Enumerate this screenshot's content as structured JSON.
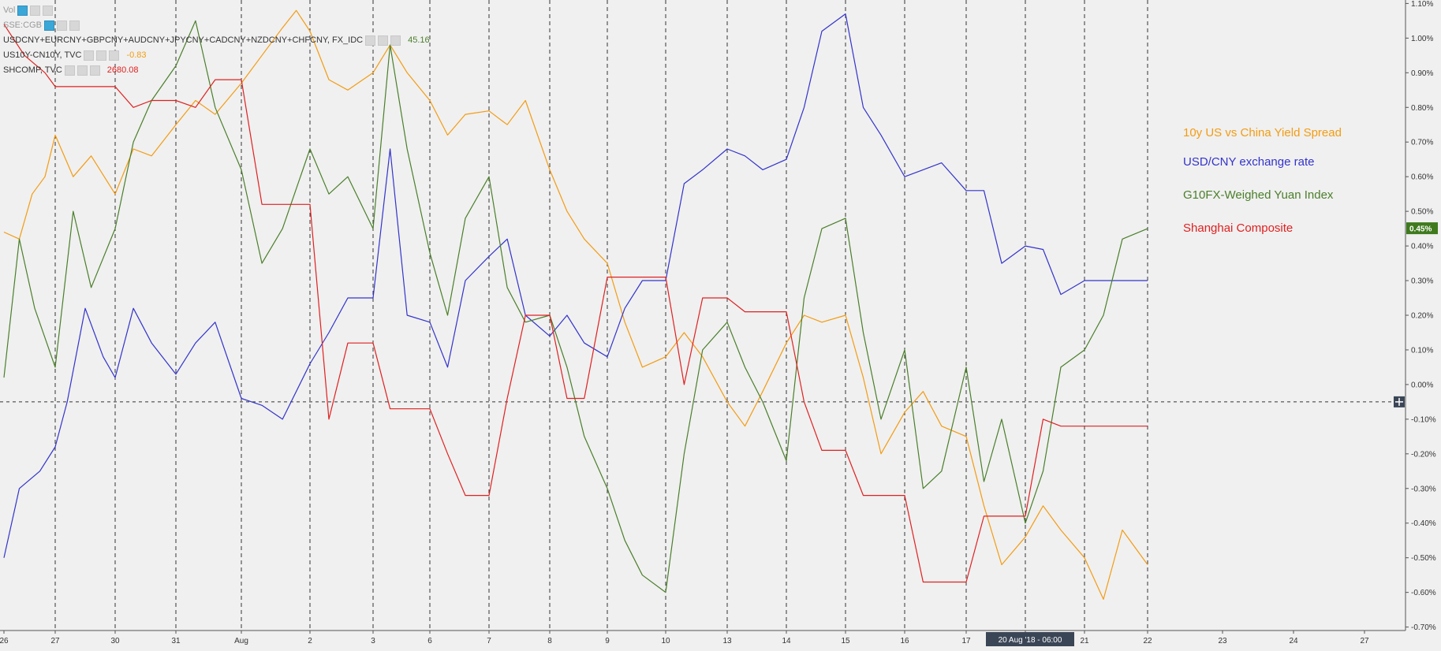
{
  "toolbar": {
    "vol_label": "Vol",
    "sse_label": "SSE:CGB",
    "series_rows": [
      {
        "label": "USDCNY+EURCNY+GBPCNY+AUDCNY+JPYCNY+CADCNY+NZDCNY+CHFCNY, FX_IDC",
        "value": "45.16",
        "color": "#4a7f2a"
      },
      {
        "label": "US10Y-CN10Y, TVC",
        "value": "-0.83",
        "color": "#f39c12"
      },
      {
        "label": "SHCOMP, TVC",
        "value": "2680.08",
        "color": "#e02020"
      }
    ]
  },
  "crosshair_date_label": "20 Aug '18 - 06:00",
  "last_value_badge": "0.45%",
  "chart_data": {
    "type": "line",
    "x_ticks": [
      "26",
      "27",
      "30",
      "31",
      "Aug",
      "2",
      "3",
      "6",
      "7",
      "8",
      "9",
      "10",
      "13",
      "14",
      "15",
      "16",
      "17",
      "20",
      "21",
      "22",
      "23",
      "24",
      "27"
    ],
    "y_ticks": [
      "1.10%",
      "1.00%",
      "0.90%",
      "0.80%",
      "0.70%",
      "0.60%",
      "0.50%",
      "0.40%",
      "0.30%",
      "0.20%",
      "0.10%",
      "0.00%",
      "-0.10%",
      "-0.20%",
      "-0.30%",
      "-0.40%",
      "-0.50%",
      "-0.60%",
      "-0.70%"
    ],
    "ylim": [
      -0.71,
      1.11
    ],
    "grid": "vertical-dashed-at-sessions",
    "legend": [
      {
        "name": "10y US vs China Yield Spread",
        "color": "#f39c12"
      },
      {
        "name": "USD/CNY exchange rate",
        "color": "#3333cc"
      },
      {
        "name": "G10FX-Weighed Yuan Index",
        "color": "#4a7f2a"
      },
      {
        "name": "Shanghai Composite",
        "color": "#e02020"
      }
    ],
    "series": [
      {
        "name": "10y US vs China Yield Spread",
        "color": "#f39c12",
        "points": [
          [
            0,
            0.44
          ],
          [
            0.3,
            0.42
          ],
          [
            0.55,
            0.55
          ],
          [
            0.8,
            0.6
          ],
          [
            1,
            0.72
          ],
          [
            1.3,
            0.6
          ],
          [
            1.6,
            0.66
          ],
          [
            2,
            0.55
          ],
          [
            2.3,
            0.68
          ],
          [
            2.6,
            0.66
          ],
          [
            3,
            0.75
          ],
          [
            3.3,
            0.82
          ],
          [
            3.6,
            0.78
          ],
          [
            4,
            0.87
          ],
          [
            4.3,
            0.95
          ],
          [
            4.6,
            1.03
          ],
          [
            4.8,
            1.08
          ],
          [
            5,
            1.02
          ],
          [
            5.3,
            0.88
          ],
          [
            5.6,
            0.85
          ],
          [
            6,
            0.9
          ],
          [
            6.3,
            0.98
          ],
          [
            6.6,
            0.9
          ],
          [
            7,
            0.82
          ],
          [
            7.3,
            0.72
          ],
          [
            7.6,
            0.78
          ],
          [
            8,
            0.79
          ],
          [
            8.3,
            0.75
          ],
          [
            8.6,
            0.82
          ],
          [
            9,
            0.62
          ],
          [
            9.3,
            0.5
          ],
          [
            9.6,
            0.42
          ],
          [
            10,
            0.35
          ],
          [
            10.3,
            0.18
          ],
          [
            10.6,
            0.05
          ],
          [
            11,
            0.08
          ],
          [
            11.3,
            0.15
          ],
          [
            11.6,
            0.08
          ],
          [
            12,
            -0.05
          ],
          [
            12.3,
            -0.12
          ],
          [
            12.6,
            -0.02
          ],
          [
            13,
            0.12
          ],
          [
            13.3,
            0.2
          ],
          [
            13.6,
            0.18
          ],
          [
            14,
            0.2
          ],
          [
            14.3,
            0.02
          ],
          [
            14.6,
            -0.2
          ],
          [
            15,
            -0.08
          ],
          [
            15.3,
            -0.02
          ],
          [
            15.6,
            -0.12
          ],
          [
            16,
            -0.15
          ],
          [
            16.3,
            -0.35
          ],
          [
            16.6,
            -0.52
          ],
          [
            17,
            -0.44
          ],
          [
            17.3,
            -0.35
          ],
          [
            17.6,
            -0.42
          ],
          [
            18,
            -0.5
          ],
          [
            18.3,
            -0.62
          ],
          [
            18.6,
            -0.42
          ],
          [
            19,
            -0.52
          ]
        ]
      },
      {
        "name": "USD/CNY exchange rate",
        "color": "#3333cc",
        "points": [
          [
            0,
            -0.5
          ],
          [
            0.3,
            -0.3
          ],
          [
            0.7,
            -0.25
          ],
          [
            1,
            -0.18
          ],
          [
            1.2,
            -0.05
          ],
          [
            1.5,
            0.22
          ],
          [
            1.8,
            0.08
          ],
          [
            2,
            0.02
          ],
          [
            2.3,
            0.22
          ],
          [
            2.6,
            0.12
          ],
          [
            3,
            0.03
          ],
          [
            3.3,
            0.12
          ],
          [
            3.6,
            0.18
          ],
          [
            4,
            -0.04
          ],
          [
            4.3,
            -0.06
          ],
          [
            4.6,
            -0.1
          ],
          [
            5,
            0.06
          ],
          [
            5.3,
            0.15
          ],
          [
            5.6,
            0.25
          ],
          [
            6,
            0.25
          ],
          [
            6.3,
            0.68
          ],
          [
            6.6,
            0.2
          ],
          [
            7,
            0.18
          ],
          [
            7.3,
            0.05
          ],
          [
            7.6,
            0.3
          ],
          [
            8,
            0.37
          ],
          [
            8.3,
            0.42
          ],
          [
            8.6,
            0.2
          ],
          [
            9,
            0.14
          ],
          [
            9.3,
            0.2
          ],
          [
            9.6,
            0.12
          ],
          [
            10,
            0.08
          ],
          [
            10.3,
            0.22
          ],
          [
            10.6,
            0.3
          ],
          [
            11,
            0.3
          ],
          [
            11.3,
            0.58
          ],
          [
            11.6,
            0.62
          ],
          [
            12,
            0.68
          ],
          [
            12.3,
            0.66
          ],
          [
            12.6,
            0.62
          ],
          [
            13,
            0.65
          ],
          [
            13.3,
            0.8
          ],
          [
            13.6,
            1.02
          ],
          [
            14,
            1.07
          ],
          [
            14.3,
            0.8
          ],
          [
            14.6,
            0.72
          ],
          [
            15,
            0.6
          ],
          [
            15.3,
            0.62
          ],
          [
            15.6,
            0.64
          ],
          [
            16,
            0.56
          ],
          [
            16.3,
            0.56
          ],
          [
            16.6,
            0.35
          ],
          [
            17,
            0.4
          ],
          [
            17.3,
            0.39
          ],
          [
            17.6,
            0.26
          ],
          [
            18,
            0.3
          ],
          [
            18.3,
            0.3
          ],
          [
            19,
            0.3
          ]
        ]
      },
      {
        "name": "G10FX-Weighed Yuan Index",
        "color": "#4a7f2a",
        "points": [
          [
            0,
            0.02
          ],
          [
            0.3,
            0.42
          ],
          [
            0.6,
            0.22
          ],
          [
            1,
            0.05
          ],
          [
            1.3,
            0.5
          ],
          [
            1.6,
            0.28
          ],
          [
            2,
            0.45
          ],
          [
            2.3,
            0.7
          ],
          [
            2.6,
            0.82
          ],
          [
            3,
            0.92
          ],
          [
            3.3,
            1.05
          ],
          [
            3.6,
            0.8
          ],
          [
            4,
            0.62
          ],
          [
            4.3,
            0.35
          ],
          [
            4.6,
            0.45
          ],
          [
            5,
            0.68
          ],
          [
            5.3,
            0.55
          ],
          [
            5.6,
            0.6
          ],
          [
            6,
            0.45
          ],
          [
            6.3,
            0.98
          ],
          [
            6.6,
            0.68
          ],
          [
            7,
            0.38
          ],
          [
            7.3,
            0.2
          ],
          [
            7.6,
            0.48
          ],
          [
            8,
            0.6
          ],
          [
            8.3,
            0.28
          ],
          [
            8.6,
            0.18
          ],
          [
            9,
            0.2
          ],
          [
            9.3,
            0.05
          ],
          [
            9.6,
            -0.15
          ],
          [
            10,
            -0.3
          ],
          [
            10.3,
            -0.45
          ],
          [
            10.6,
            -0.55
          ],
          [
            11,
            -0.6
          ],
          [
            11.3,
            -0.2
          ],
          [
            11.6,
            0.1
          ],
          [
            12,
            0.18
          ],
          [
            12.3,
            0.05
          ],
          [
            12.6,
            -0.05
          ],
          [
            13,
            -0.22
          ],
          [
            13.3,
            0.25
          ],
          [
            13.6,
            0.45
          ],
          [
            14,
            0.48
          ],
          [
            14.3,
            0.15
          ],
          [
            14.6,
            -0.1
          ],
          [
            15,
            0.1
          ],
          [
            15.3,
            -0.3
          ],
          [
            15.6,
            -0.25
          ],
          [
            16,
            0.05
          ],
          [
            16.3,
            -0.28
          ],
          [
            16.6,
            -0.1
          ],
          [
            17,
            -0.4
          ],
          [
            17.3,
            -0.25
          ],
          [
            17.6,
            0.05
          ],
          [
            18,
            0.1
          ],
          [
            18.3,
            0.2
          ],
          [
            18.6,
            0.42
          ],
          [
            19,
            0.45
          ]
        ]
      },
      {
        "name": "Shanghai Composite",
        "color": "#e02020",
        "points": [
          [
            0,
            1.04
          ],
          [
            0.4,
            0.95
          ],
          [
            0.8,
            0.9
          ],
          [
            1,
            0.86
          ],
          [
            1.3,
            0.86
          ],
          [
            2,
            0.86
          ],
          [
            2.3,
            0.8
          ],
          [
            2.6,
            0.82
          ],
          [
            3,
            0.82
          ],
          [
            3.3,
            0.8
          ],
          [
            3.6,
            0.88
          ],
          [
            4,
            0.88
          ],
          [
            4.3,
            0.52
          ],
          [
            5,
            0.52
          ],
          [
            5.3,
            -0.1
          ],
          [
            5.6,
            0.12
          ],
          [
            6,
            0.12
          ],
          [
            6.3,
            -0.07
          ],
          [
            7,
            -0.07
          ],
          [
            7.3,
            -0.2
          ],
          [
            7.6,
            -0.32
          ],
          [
            8,
            -0.32
          ],
          [
            8.3,
            -0.04
          ],
          [
            8.6,
            0.2
          ],
          [
            9,
            0.2
          ],
          [
            9.3,
            -0.04
          ],
          [
            9.6,
            -0.04
          ],
          [
            10,
            0.31
          ],
          [
            10.3,
            0.31
          ],
          [
            10.6,
            0.31
          ],
          [
            11,
            0.31
          ],
          [
            11.3,
            0.0
          ],
          [
            11.6,
            0.25
          ],
          [
            12,
            0.25
          ],
          [
            12.3,
            0.21
          ],
          [
            12.6,
            0.21
          ],
          [
            13,
            0.21
          ],
          [
            13.3,
            -0.05
          ],
          [
            13.6,
            -0.19
          ],
          [
            14,
            -0.19
          ],
          [
            14.3,
            -0.32
          ],
          [
            14.6,
            -0.32
          ],
          [
            15,
            -0.32
          ],
          [
            15.3,
            -0.57
          ],
          [
            15.6,
            -0.57
          ],
          [
            16,
            -0.57
          ],
          [
            16.3,
            -0.38
          ],
          [
            16.6,
            -0.38
          ],
          [
            17,
            -0.38
          ],
          [
            17.3,
            -0.1
          ],
          [
            17.6,
            -0.12
          ],
          [
            18,
            -0.12
          ],
          [
            19,
            -0.12
          ]
        ]
      }
    ]
  }
}
